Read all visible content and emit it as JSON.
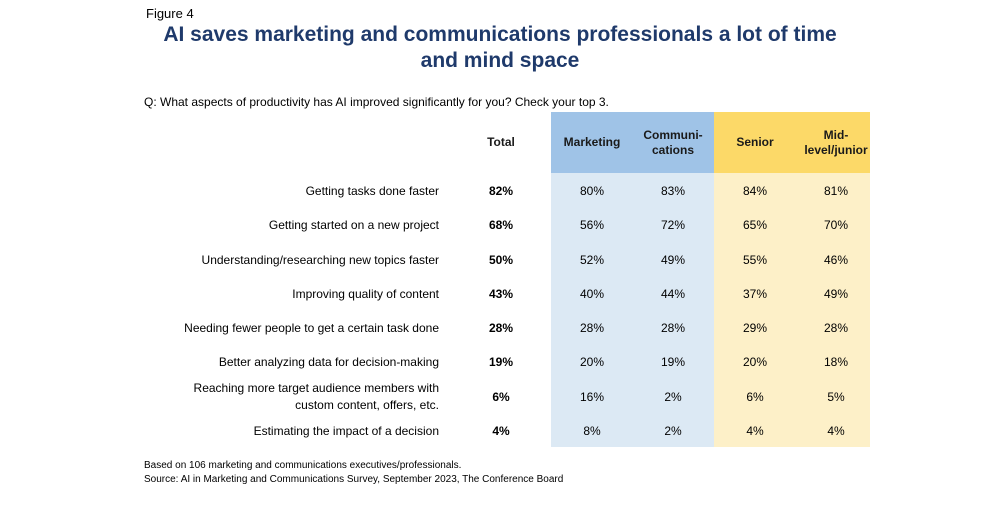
{
  "figure_label": "Figure 4",
  "title_line1": "AI saves marketing and communications professionals a lot of time",
  "title_line2": "and mind space",
  "question": "Q: What aspects of productivity has AI improved significantly for you? Check your top 3.",
  "chart_data": {
    "type": "table",
    "columns": [
      "Total",
      "Marketing",
      "Communi-\ncations",
      "Senior",
      "Mid-\nlevel/junior"
    ],
    "rows": [
      {
        "label": "Getting tasks done faster",
        "values": [
          "82%",
          "80%",
          "83%",
          "84%",
          "81%"
        ]
      },
      {
        "label": "Getting started on a new project",
        "values": [
          "68%",
          "56%",
          "72%",
          "65%",
          "70%"
        ]
      },
      {
        "label": "Understanding/researching new topics faster",
        "values": [
          "50%",
          "52%",
          "49%",
          "55%",
          "46%"
        ]
      },
      {
        "label": "Improving quality of content",
        "values": [
          "43%",
          "40%",
          "44%",
          "37%",
          "49%"
        ]
      },
      {
        "label": "Needing fewer people to get a certain task done",
        "values": [
          "28%",
          "28%",
          "28%",
          "29%",
          "28%"
        ]
      },
      {
        "label": "Better analyzing data for decision-making",
        "values": [
          "19%",
          "20%",
          "19%",
          "20%",
          "18%"
        ]
      },
      {
        "label": "Reaching more target audience members with\ncustom content, offers, etc.",
        "values": [
          "6%",
          "16%",
          "2%",
          "6%",
          "5%"
        ]
      },
      {
        "label": "Estimating the impact of a decision",
        "values": [
          "4%",
          "8%",
          "2%",
          "4%",
          "4%"
        ]
      }
    ]
  },
  "colors": {
    "marketing_header": "#9fc3e7",
    "marketing_band": "#dce9f4",
    "senior_header": "#fcd968",
    "senior_band": "#fdf0c8",
    "title": "#1f3a6b"
  },
  "footnote_1": "Based on 106 marketing and communications executives/professionals.",
  "footnote_2": "Source: AI in Marketing and Communications Survey, September 2023, The Conference Board"
}
